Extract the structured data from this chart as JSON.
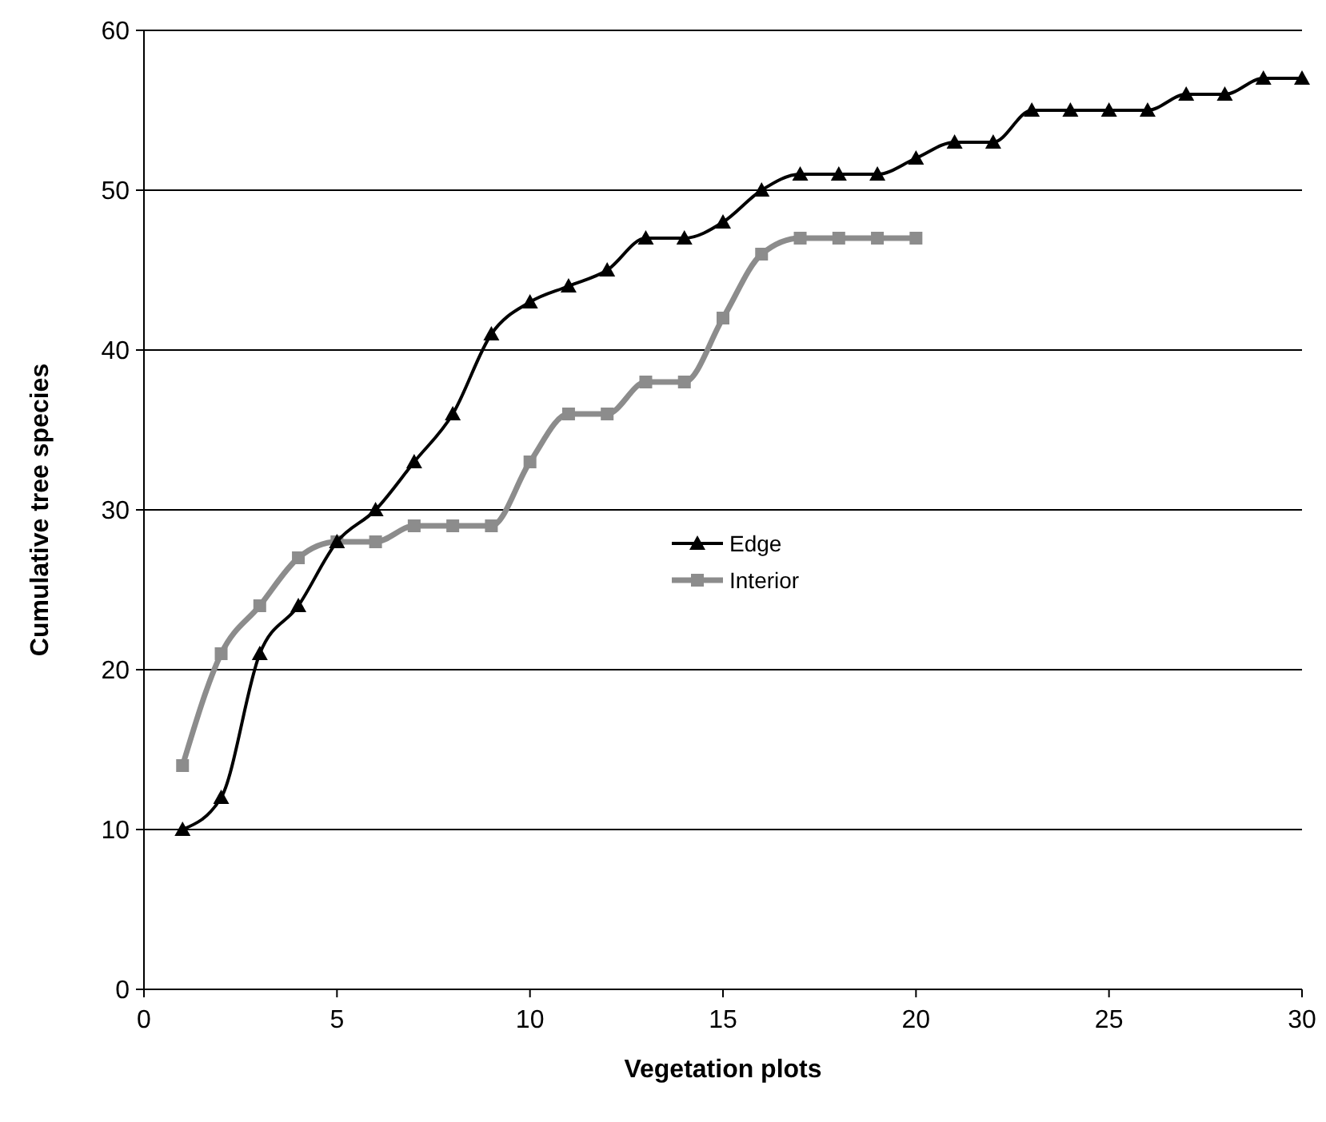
{
  "chart_data": {
    "type": "line",
    "xlabel": "Vegetation plots",
    "ylabel": "Cumulative tree species",
    "xlim": [
      0,
      30
    ],
    "ylim": [
      0,
      60
    ],
    "xticks": [
      0,
      5,
      10,
      15,
      20,
      25,
      30
    ],
    "yticks": [
      0,
      10,
      20,
      30,
      40,
      50,
      60
    ],
    "grid": "y",
    "legend": "center",
    "line_style": "solid",
    "series": [
      {
        "name": "Edge",
        "color": "#000000",
        "marker": "triangle",
        "x": [
          1,
          2,
          3,
          4,
          5,
          6,
          7,
          8,
          9,
          10,
          11,
          12,
          13,
          14,
          15,
          16,
          17,
          18,
          19,
          20,
          21,
          22,
          23,
          24,
          25,
          26,
          27,
          28,
          29,
          30
        ],
        "values": [
          10,
          12,
          21,
          24,
          28,
          30,
          33,
          36,
          41,
          43,
          44,
          45,
          47,
          47,
          48,
          50,
          51,
          51,
          51,
          52,
          53,
          53,
          55,
          55,
          55,
          55,
          56,
          56,
          57,
          57
        ]
      },
      {
        "name": "Interior",
        "color": "#8c8c8c",
        "marker": "square",
        "x": [
          1,
          2,
          3,
          4,
          5,
          6,
          7,
          8,
          9,
          10,
          11,
          12,
          13,
          14,
          15,
          16,
          17,
          18,
          19,
          20
        ],
        "values": [
          14,
          21,
          24,
          27,
          28,
          28,
          29,
          29,
          29,
          33,
          36,
          36,
          38,
          38,
          42,
          46,
          47,
          47,
          47,
          47
        ]
      }
    ]
  }
}
